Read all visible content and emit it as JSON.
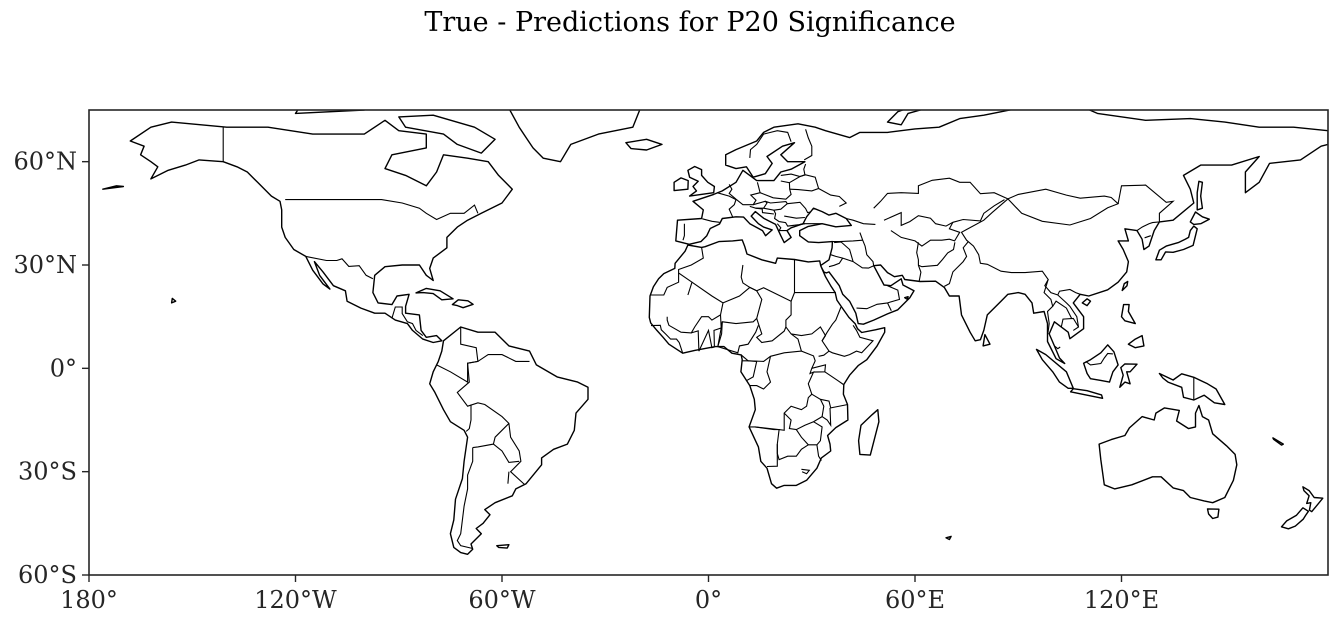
{
  "title": "True - Predictions for P20 Significance",
  "map": {
    "projection": "PlateCarree",
    "lon_range": [
      -180,
      180
    ],
    "lat_range": [
      -60,
      75
    ],
    "x_ticks": [
      {
        "lon": -180,
        "label": "180°"
      },
      {
        "lon": -120,
        "label": "120°W"
      },
      {
        "lon": -60,
        "label": "60°W"
      },
      {
        "lon": 0,
        "label": "0°"
      },
      {
        "lon": 60,
        "label": "60°E"
      },
      {
        "lon": 120,
        "label": "120°E"
      }
    ],
    "y_ticks": [
      {
        "lat": 60,
        "label": "60°N"
      },
      {
        "lat": 30,
        "label": "30°N"
      },
      {
        "lat": 0,
        "label": "0°"
      },
      {
        "lat": -30,
        "label": "30°S"
      },
      {
        "lat": -60,
        "label": "60°S"
      }
    ],
    "features": [
      "coastlines",
      "country-borders"
    ],
    "land_color": "#ffffff",
    "line_color": "#000000"
  }
}
